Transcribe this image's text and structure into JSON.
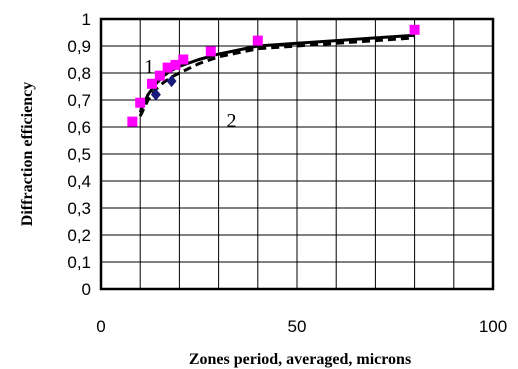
{
  "chart_data": {
    "type": "scatter",
    "title": "",
    "xlabel": "Zones period, averaged, microns",
    "ylabel": "Diffraction efficiency",
    "xlim": [
      0,
      100
    ],
    "ylim": [
      0,
      1
    ],
    "x_ticks": [
      "0",
      "50",
      "100"
    ],
    "y_ticks": [
      "0",
      "0,1",
      "0,2",
      "0,3",
      "0,4",
      "0,5",
      "0,6",
      "0,7",
      "0,8",
      "0,9",
      "1"
    ],
    "grid": true,
    "legend": "none",
    "series": [
      {
        "marker": "square",
        "color": "#ff00ff",
        "points": [
          [
            8,
            0.62
          ],
          [
            10,
            0.69
          ],
          [
            13,
            0.76
          ],
          [
            15,
            0.79
          ],
          [
            17,
            0.82
          ],
          [
            19,
            0.83
          ],
          [
            21,
            0.85
          ],
          [
            28,
            0.88
          ],
          [
            40,
            0.92
          ],
          [
            80,
            0.96
          ]
        ]
      },
      {
        "marker": "diamond",
        "color": "#1a1a7a",
        "points": [
          [
            14,
            0.72
          ],
          [
            18,
            0.77
          ]
        ]
      },
      {
        "line": "solid",
        "color": "#000000",
        "label": "1",
        "points": [
          [
            10,
            0.655
          ],
          [
            12,
            0.72
          ],
          [
            14,
            0.76
          ],
          [
            16,
            0.79
          ],
          [
            18,
            0.81
          ],
          [
            20,
            0.825
          ],
          [
            25,
            0.85
          ],
          [
            30,
            0.87
          ],
          [
            40,
            0.9
          ],
          [
            50,
            0.91
          ],
          [
            60,
            0.92
          ],
          [
            70,
            0.93
          ],
          [
            80,
            0.94
          ]
        ]
      },
      {
        "line": "dashed",
        "color": "#000000",
        "label": "2",
        "points": [
          [
            10,
            0.64
          ],
          [
            12,
            0.7
          ],
          [
            14,
            0.74
          ],
          [
            16,
            0.765
          ],
          [
            18,
            0.785
          ],
          [
            20,
            0.8
          ],
          [
            25,
            0.835
          ],
          [
            30,
            0.86
          ],
          [
            40,
            0.89
          ],
          [
            50,
            0.9
          ],
          [
            60,
            0.91
          ],
          [
            70,
            0.92
          ],
          [
            80,
            0.93
          ]
        ]
      }
    ]
  }
}
